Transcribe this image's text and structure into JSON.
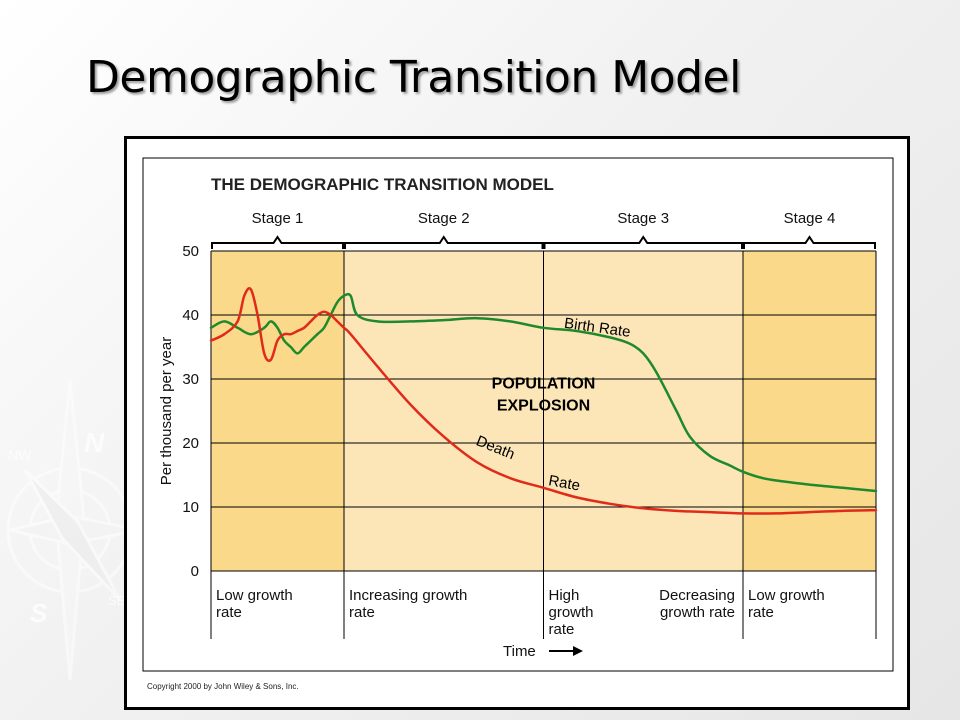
{
  "slide": {
    "title": "Demographic Transition Model",
    "background_color": "#efefef"
  },
  "decoration": {
    "icon": "compass-rose-icon",
    "letters": [
      "N",
      "NW",
      "S",
      "SE"
    ]
  },
  "chart_data": {
    "type": "line",
    "title": "THE DEMOGRAPHIC TRANSITION MODEL",
    "ylabel": "Per thousand per year",
    "xlabel": "Time",
    "ylim": [
      0,
      50
    ],
    "yticks": [
      0,
      10,
      20,
      30,
      40,
      50
    ],
    "xlim": [
      0,
      100
    ],
    "grid": true,
    "stages": [
      {
        "label": "Stage 1",
        "start": 0,
        "end": 20,
        "growth_text": [
          "Low growth",
          "rate"
        ],
        "color": "#fbd98a"
      },
      {
        "label": "Stage 2",
        "start": 20,
        "end": 50,
        "growth_text": [
          "Increasing growth",
          "rate"
        ],
        "color": "#fce6b8"
      },
      {
        "label": "Stage 3",
        "start": 50,
        "end": 80,
        "growth_text": [
          "High",
          "growth",
          "rate"
        ],
        "growth_text_2": [
          "Decreasing",
          "growth rate"
        ],
        "color": "#fce6b8"
      },
      {
        "label": "Stage 4",
        "start": 80,
        "end": 100,
        "growth_text": [
          "Low growth",
          "rate"
        ],
        "color": "#fbd98a"
      }
    ],
    "series": [
      {
        "name": "Birth Rate",
        "color": "#1e8a2c",
        "x": [
          0,
          2,
          4,
          6,
          8,
          9,
          10,
          11,
          12,
          13,
          14,
          15,
          16,
          17,
          18,
          19,
          20,
          21,
          22,
          25,
          30,
          35,
          40,
          45,
          50,
          55,
          60,
          63,
          65,
          67,
          70,
          72,
          75,
          78,
          80,
          83,
          86,
          90,
          95,
          100
        ],
        "y": [
          38,
          39,
          38,
          37,
          38,
          39,
          38,
          36,
          35,
          34,
          35,
          36,
          37,
          38,
          40,
          42,
          43,
          43,
          40,
          39,
          39,
          39.2,
          39.5,
          39,
          38,
          37.5,
          36.5,
          35.5,
          34,
          31,
          25,
          21,
          18,
          16.5,
          15.5,
          14.5,
          14,
          13.5,
          13,
          12.5
        ]
      },
      {
        "name": "Death Rate",
        "color": "#e02a1a",
        "x": [
          0,
          2,
          4,
          5,
          6,
          7,
          8,
          9,
          10,
          11,
          12,
          13,
          14,
          15,
          16,
          17,
          18,
          19,
          20,
          21,
          25,
          30,
          35,
          40,
          45,
          50,
          55,
          60,
          65,
          70,
          75,
          80,
          85,
          90,
          95,
          100
        ],
        "y": [
          36,
          37,
          39,
          43,
          44,
          40,
          34,
          33,
          36,
          37,
          37,
          37.5,
          38,
          39,
          40,
          40.5,
          40,
          39,
          38,
          37,
          32,
          26,
          21,
          17,
          14.5,
          13,
          11.5,
          10.5,
          9.8,
          9.4,
          9.2,
          9.0,
          9.0,
          9.2,
          9.4,
          9.5
        ]
      }
    ],
    "annotations": [
      {
        "text": "Birth Rate",
        "x": 58,
        "y": 37.3,
        "rotate": 8,
        "color": "#000"
      },
      {
        "text": "Death",
        "x": 42.5,
        "y": 18.6,
        "rotate": 22,
        "color": "#000"
      },
      {
        "text": "Rate",
        "x": 53,
        "y": 13.0,
        "rotate": 10,
        "color": "#000"
      },
      {
        "lines": [
          "POPULATION",
          "EXPLOSION"
        ],
        "x": 50,
        "y": 28.5,
        "bold": true,
        "color": "#000"
      }
    ],
    "copyright": "Copyright 2000 by John Wiley & Sons, Inc."
  }
}
